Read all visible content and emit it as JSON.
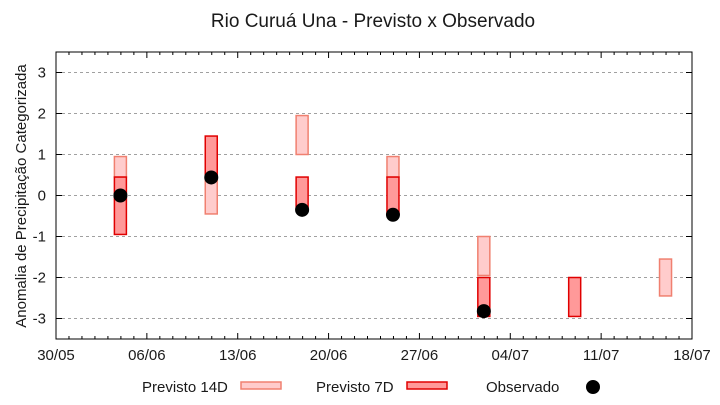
{
  "chart_data": {
    "type": "bar",
    "subtype": "floating-range-bars-with-points",
    "title": "Rio Curuá Una - Previsto x Observado",
    "xlabel": "",
    "ylabel": "Anomalia de Precipitação Categorizada",
    "ylim": [
      -3.5,
      3.5
    ],
    "yticks": [
      -3,
      -2,
      -1,
      0,
      1,
      2,
      3
    ],
    "xlim_dates": [
      "30/05",
      "18/07"
    ],
    "xticks": [
      "30/05",
      "06/06",
      "13/06",
      "20/06",
      "27/06",
      "04/07",
      "11/07",
      "18/07"
    ],
    "grid": {
      "y": true,
      "x": false,
      "style": "dotted"
    },
    "legend_position": "bottom",
    "categories": [
      "04/06",
      "11/06",
      "18/06",
      "25/06",
      "02/07",
      "09/07",
      "16/07"
    ],
    "series": [
      {
        "name": "Previsto 14D",
        "kind": "range",
        "fill": "#ffcccc",
        "stroke": "#f08070",
        "values": [
          [
            0.45,
            0.95
          ],
          [
            -0.45,
            0.45
          ],
          [
            1.0,
            1.95
          ],
          [
            0.45,
            0.95
          ],
          [
            -1.95,
            -1.0
          ],
          null,
          [
            -2.45,
            -1.55
          ]
        ]
      },
      {
        "name": "Previsto 7D",
        "kind": "range",
        "fill": "#ff9999",
        "stroke": "#e00000",
        "values": [
          [
            -0.95,
            0.45
          ],
          [
            0.45,
            1.45
          ],
          [
            -0.35,
            0.45
          ],
          [
            -0.45,
            0.45
          ],
          [
            -2.95,
            -2.0
          ],
          [
            -2.95,
            -2.0
          ],
          null
        ]
      },
      {
        "name": "Observado",
        "kind": "point",
        "color": "#000000",
        "values": [
          0.0,
          0.44,
          -0.35,
          -0.47,
          -2.82,
          null,
          null
        ]
      }
    ],
    "category_day_offsets": [
      5,
      12,
      19,
      26,
      33,
      40,
      47
    ]
  },
  "legend": {
    "items": [
      {
        "label": "Previsto 14D"
      },
      {
        "label": "Previsto 7D"
      },
      {
        "label": "Observado"
      }
    ]
  }
}
